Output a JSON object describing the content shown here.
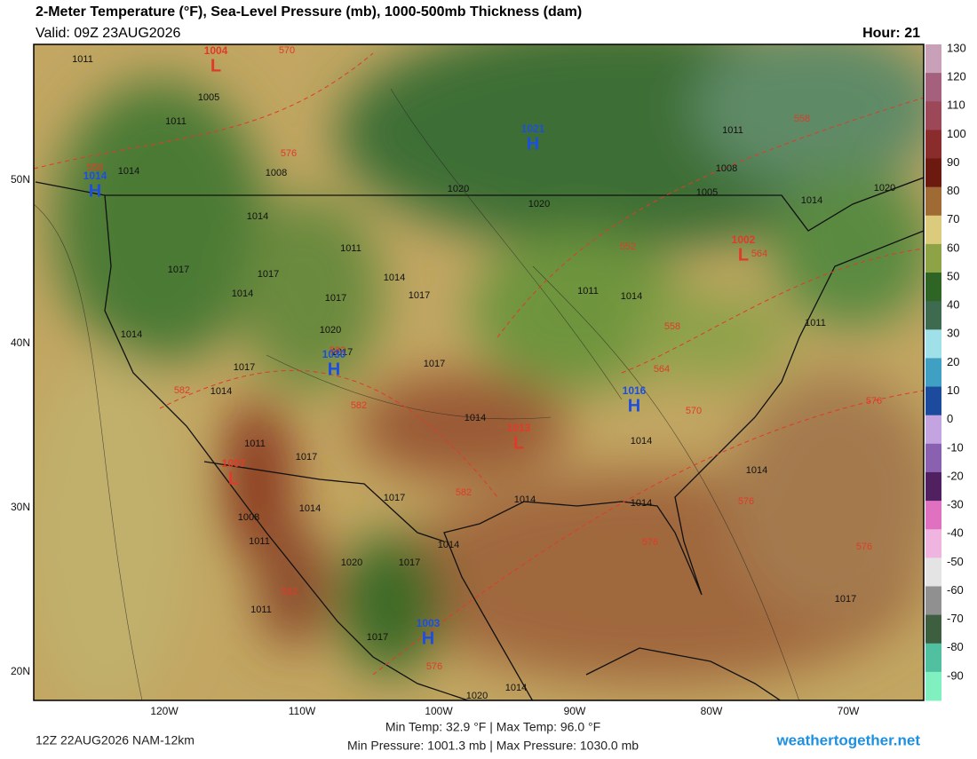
{
  "header": {
    "title": "2-Meter Temperature (°F), Sea-Level Pressure (mb), 1000-500mb Thickness (dam)",
    "valid": "Valid: 09Z 23AUG2026",
    "hour": "Hour: 21"
  },
  "colorbar": {
    "ticks": [
      130,
      120,
      110,
      100,
      90,
      80,
      70,
      60,
      50,
      40,
      30,
      20,
      10,
      0,
      -10,
      -20,
      -30,
      -40,
      -50,
      -60,
      -70,
      -80,
      -90
    ],
    "colors": [
      "#c8a0b8",
      "#a4607c",
      "#9c4858",
      "#8a2c2c",
      "#6c1a10",
      "#a06a34",
      "#dccb7c",
      "#8ea246",
      "#2e6424",
      "#3e6a50",
      "#a0e0e8",
      "#40a0c4",
      "#1c4a9c",
      "#c4a4e0",
      "#8a60b0",
      "#502060",
      "#e070c0",
      "#f0b4e0",
      "#e4e4e4",
      "#909090",
      "#3e5e40",
      "#50c0a0",
      "#80f0c0"
    ]
  },
  "latitudes": [
    "50N",
    "40N",
    "30N",
    "20N"
  ],
  "longitudes": [
    "120W",
    "110W",
    "100W",
    "90W",
    "80W",
    "70W"
  ],
  "centers": [
    {
      "letter": "L",
      "value": "1004",
      "color": "#e03a2a"
    },
    {
      "letter": "H",
      "value": "1021",
      "color": "#1e4ee0"
    },
    {
      "letter": "H",
      "value": "1014",
      "color": "#1e4ee0"
    },
    {
      "letter": "L",
      "value": "1002",
      "color": "#e03a2a"
    },
    {
      "letter": "H",
      "value": "1030",
      "color": "#1e4ee0"
    },
    {
      "letter": "H",
      "value": "1016",
      "color": "#1e4ee0"
    },
    {
      "letter": "L",
      "value": "1013",
      "color": "#e03a2a"
    },
    {
      "letter": "L",
      "value": "1007",
      "color": "#e03a2a"
    },
    {
      "letter": "H",
      "value": "1003",
      "color": "#1e4ee0"
    }
  ],
  "isobar_labels": [
    "1011",
    "1005",
    "1011",
    "1014",
    "1008",
    "1020",
    "1020",
    "1014",
    "1011",
    "1017",
    "1017",
    "1014",
    "1014",
    "1017",
    "1017",
    "1020",
    "1014",
    "1017",
    "1017",
    "1017",
    "1014",
    "1014",
    "1011",
    "1017",
    "1017",
    "1014",
    "1008",
    "1011",
    "1014",
    "1020",
    "1017",
    "1011",
    "1017",
    "1014",
    "1020",
    "1014",
    "1014",
    "1014",
    "1014",
    "1017",
    "1011",
    "1008",
    "1005",
    "1014",
    "1020",
    "1011",
    "1014",
    "1011"
  ],
  "thickness_labels": [
    "570",
    "576",
    "558",
    "558",
    "582",
    "582",
    "582",
    "582",
    "576",
    "582",
    "564",
    "552",
    "558",
    "564",
    "570",
    "576",
    "576",
    "576",
    "576"
  ],
  "footer": {
    "run": "12Z 22AUG2026 NAM-12km",
    "temps": "Min Temp:  32.9 °F | Max Temp:  96.0 °F",
    "pressures": "Min Pressure: 1001.3 mb | Max Pressure: 1030.0 mb",
    "site": "weathertogether.net"
  }
}
